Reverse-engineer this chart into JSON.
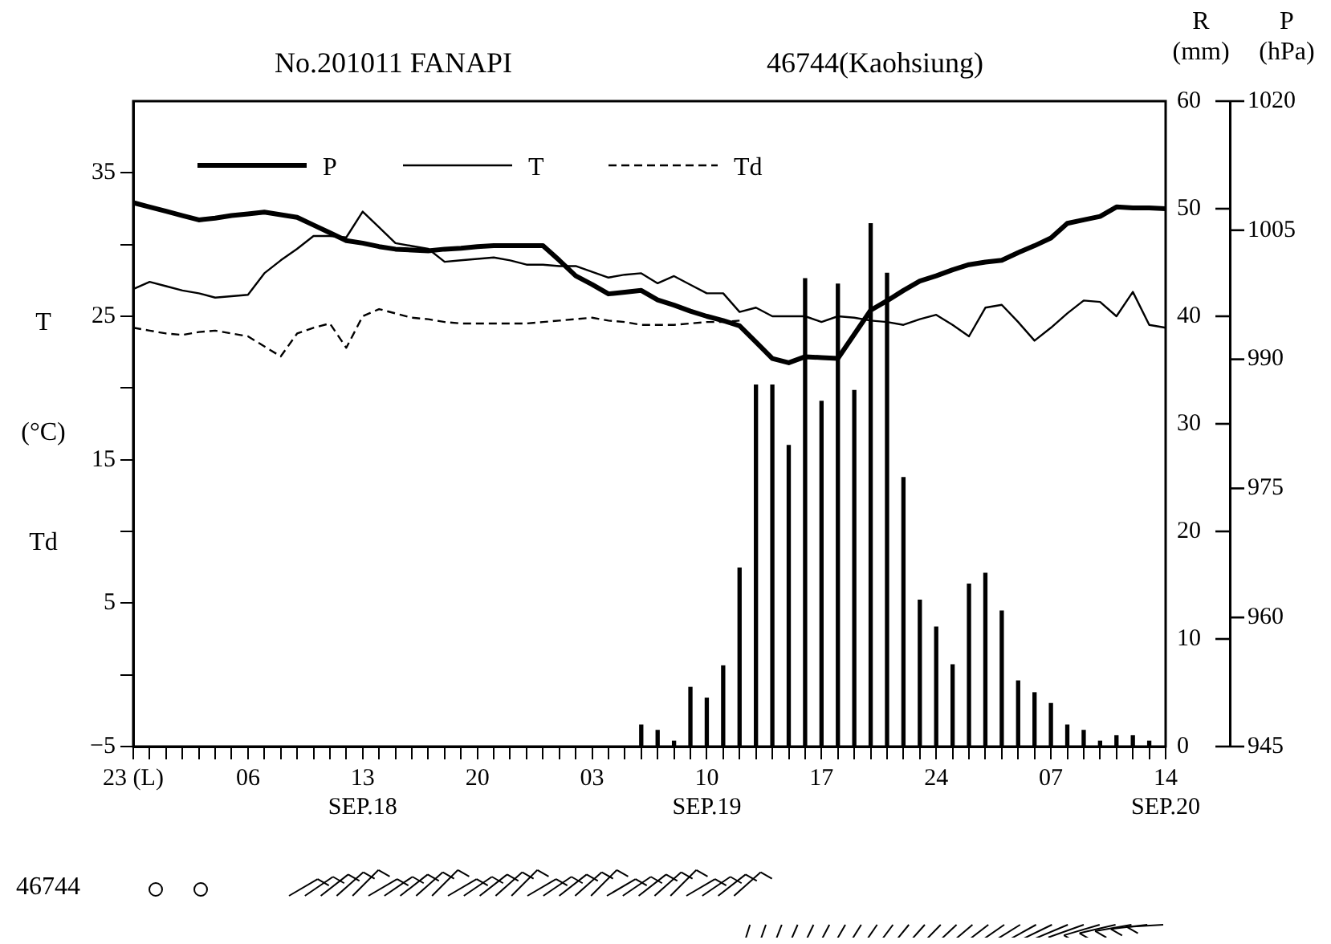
{
  "chart_data": {
    "type": "line",
    "title": "No.201011 FANAPI",
    "subtitle": "46744(Kaohsiung)",
    "ylabel": "T (°C) Td",
    "y2label": "R (mm)",
    "y3label": "P (hPa)",
    "legend": "top left",
    "annotations": [
      "46744"
    ],
    "categories": [
      "23 (L)",
      null,
      null,
      null,
      null,
      null,
      null,
      "06",
      null,
      null,
      null,
      null,
      null,
      null,
      "13\nSEP.18",
      null,
      null,
      null,
      null,
      null,
      null,
      "20",
      null,
      null,
      null,
      null,
      null,
      null,
      "03",
      null,
      null,
      null,
      null,
      null,
      null,
      "10\nSEP.19",
      null,
      null,
      null,
      null,
      null,
      null,
      "17",
      null,
      null,
      null,
      null,
      null,
      null,
      "24",
      null,
      null,
      null,
      null,
      null,
      null,
      "07",
      null,
      null,
      null,
      null,
      null,
      null,
      "14\nSEP.20"
    ],
    "ylim": [
      -5,
      40
    ],
    "yticks": [
      -5,
      {
        "value": 0,
        "label": null
      },
      5,
      {
        "value": 10,
        "label": null
      },
      15,
      {
        "value": 20,
        "label": null
      },
      25,
      {
        "value": 30,
        "label": null
      },
      35
    ],
    "y2lim": [
      0,
      60
    ],
    "y2ticks": [
      0,
      10,
      20,
      30,
      40,
      50,
      60
    ],
    "y3lim": [
      945,
      1020
    ],
    "y3ticks": [
      945,
      960,
      975,
      990,
      1005,
      1020
    ],
    "series": [
      {
        "name": "P",
        "axis": "y3",
        "color": "#000000",
        "values": [
          1008.2,
          1007.7,
          1007.2,
          1006.7,
          1006.2,
          1006.4,
          1006.7,
          1006.9,
          1007.1,
          1006.8,
          1006.5,
          1005.6,
          1004.7,
          1003.8,
          1003.5,
          1003.1,
          1002.8,
          1002.7,
          1002.6,
          1002.8,
          1002.9,
          1003.1,
          1003.2,
          1003.2,
          1003.2,
          1003.2,
          1001.5,
          999.7,
          998.7,
          997.6,
          997.8,
          998,
          996.9,
          996.3,
          995.6,
          995,
          994.5,
          993.9,
          992,
          990.1,
          989.6,
          990.3,
          990.2,
          990.1,
          992.9,
          995.7,
          996.8,
          998,
          999.1,
          999.7,
          1000.4,
          1001,
          1001.3,
          1001.5,
          1002.4,
          1003.2,
          1004.1,
          1005.8,
          1006.2,
          1006.6,
          1007.7,
          1007.6,
          1007.6,
          1007.5
        ]
      },
      {
        "name": "T",
        "color": "#000000",
        "line_style": "solid",
        "values": [
          26.9,
          27.4,
          27.1,
          26.8,
          26.6,
          26.3,
          26.4,
          26.5,
          28,
          28.9,
          29.7,
          30.6,
          30.6,
          30.5,
          32.3,
          31.2,
          30.1,
          29.9,
          29.7,
          28.8,
          28.9,
          29,
          29.1,
          28.9,
          28.6,
          28.6,
          28.5,
          28.5,
          28.1,
          27.7,
          27.9,
          28,
          27.3,
          27.8,
          27.2,
          26.6,
          26.6,
          25.3,
          25.6,
          25,
          25,
          25,
          24.6,
          25,
          24.9,
          24.7,
          24.6,
          24.4,
          24.8,
          25.1,
          24.4,
          23.6,
          25.6,
          25.8,
          24.6,
          23.3,
          24.2,
          25.2,
          26.1,
          26,
          25,
          26.7,
          24.4,
          24.2
        ]
      },
      {
        "name": "Td",
        "color": "#000000",
        "line_style": "dashed",
        "values": [
          24.2,
          24,
          23.8,
          23.7,
          23.9,
          24,
          23.8,
          23.6,
          22.9,
          22.2,
          23.8,
          24.2,
          24.5,
          22.8,
          25,
          25.5,
          25.2,
          24.9,
          24.8,
          24.6,
          24.5,
          24.5,
          24.5,
          24.5,
          24.5,
          24.6,
          24.7,
          24.8,
          24.9,
          24.7,
          24.6,
          24.4,
          24.4,
          24.4,
          24.5,
          24.6,
          24.6,
          24.7,
          null,
          null,
          null,
          null,
          null,
          null,
          null,
          null,
          null,
          null,
          null,
          null,
          null,
          null,
          null,
          null,
          null,
          null,
          null,
          null,
          null,
          null,
          null,
          null,
          null,
          null
        ]
      },
      {
        "type": "bar",
        "axis": "y2",
        "color": "#000000",
        "values": [
          null,
          null,
          null,
          null,
          null,
          null,
          null,
          null,
          null,
          null,
          null,
          null,
          null,
          null,
          null,
          null,
          null,
          null,
          null,
          null,
          null,
          null,
          null,
          null,
          null,
          null,
          null,
          null,
          null,
          null,
          null,
          2,
          1.5,
          0.5,
          5.5,
          4.5,
          7.5,
          16.6,
          33.6,
          33.6,
          28,
          43.5,
          32.1,
          43,
          33.1,
          48.6,
          44,
          25,
          13.6,
          11.1,
          7.6,
          15.1,
          16.1,
          12.6,
          6.1,
          5,
          4,
          2,
          1.5,
          0.5,
          1,
          1,
          0.5,
          null
        ]
      }
    ]
  }
}
